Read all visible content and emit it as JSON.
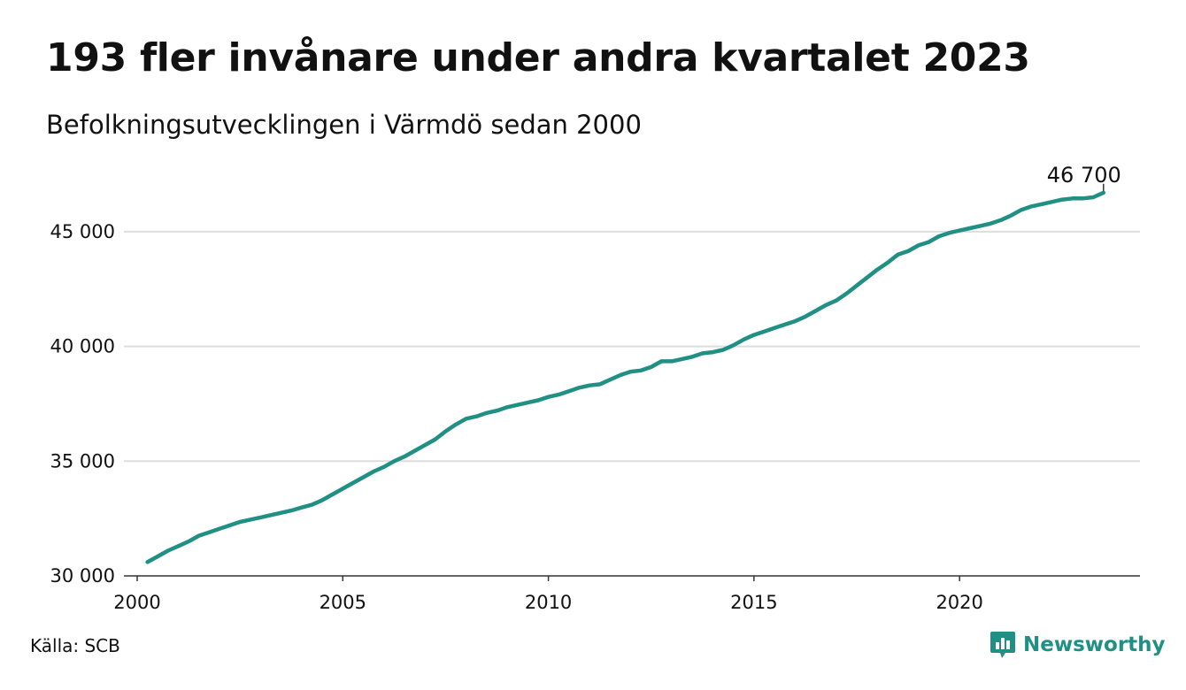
{
  "title": "193 fler invånare under andra kvartalet 2023",
  "subtitle": "Befolkningsutvecklingen i Värmdö sedan 2000",
  "source": "Källa: SCB",
  "brand": {
    "name": "Newsworthy",
    "icon": "newsworthy-logo-icon",
    "color": "#1f9083"
  },
  "chart_data": {
    "type": "line",
    "title": "193 fler invånare under andra kvartalet 2023",
    "subtitle": "Befolkningsutvecklingen i Värmdö sedan 2000",
    "xlabel": "",
    "ylabel": "",
    "xlim": [
      2000,
      2024
    ],
    "ylim": [
      30000,
      47000
    ],
    "grid": true,
    "line_color": "#1f9083",
    "x_ticks": [
      {
        "value": 2000,
        "label": "2000"
      },
      {
        "value": 2005,
        "label": "2005"
      },
      {
        "value": 2010,
        "label": "2010"
      },
      {
        "value": 2015,
        "label": "2015"
      },
      {
        "value": 2020,
        "label": "2020"
      }
    ],
    "y_ticks": [
      {
        "value": 30000,
        "label": "30 000"
      },
      {
        "value": 35000,
        "label": "35 000"
      },
      {
        "value": 40000,
        "label": "40 000"
      },
      {
        "value": 45000,
        "label": "45 000"
      }
    ],
    "end_label": "46 700",
    "series": [
      {
        "x": [
          2000.25,
          2000.5,
          2000.75,
          2001.0,
          2001.25,
          2001.5,
          2001.75,
          2002.0,
          2002.25,
          2002.5,
          2002.75,
          2003.0,
          2003.25,
          2003.5,
          2003.75,
          2004.0,
          2004.25,
          2004.5,
          2004.75,
          2005.0,
          2005.25,
          2005.5,
          2005.75,
          2006.0,
          2006.25,
          2006.5,
          2006.75,
          2007.0,
          2007.25,
          2007.5,
          2007.75,
          2008.0,
          2008.25,
          2008.5,
          2008.75,
          2009.0,
          2009.25,
          2009.5,
          2009.75,
          2010.0,
          2010.25,
          2010.5,
          2010.75,
          2011.0,
          2011.25,
          2011.5,
          2011.75,
          2012.0,
          2012.25,
          2012.5,
          2012.75,
          2013.0,
          2013.25,
          2013.5,
          2013.75,
          2014.0,
          2014.25,
          2014.5,
          2014.75,
          2015.0,
          2015.25,
          2015.5,
          2015.75,
          2016.0,
          2016.25,
          2016.5,
          2016.75,
          2017.0,
          2017.25,
          2017.5,
          2017.75,
          2018.0,
          2018.25,
          2018.5,
          2018.75,
          2019.0,
          2019.25,
          2019.5,
          2019.75,
          2020.0,
          2020.25,
          2020.5,
          2020.75,
          2021.0,
          2021.25,
          2021.5,
          2021.75,
          2022.0,
          2022.25,
          2022.5,
          2022.75,
          2023.0,
          2023.25,
          2023.5
        ],
        "y": [
          30600,
          30850,
          31100,
          31300,
          31500,
          31750,
          31900,
          32050,
          32200,
          32350,
          32450,
          32550,
          32650,
          32750,
          32850,
          32980,
          33100,
          33300,
          33550,
          33800,
          34050,
          34300,
          34550,
          34750,
          35000,
          35200,
          35450,
          35700,
          35950,
          36300,
          36600,
          36850,
          36950,
          37100,
          37200,
          37350,
          37450,
          37550,
          37650,
          37800,
          37900,
          38050,
          38200,
          38300,
          38350,
          38550,
          38750,
          38900,
          38950,
          39100,
          39350,
          39350,
          39450,
          39550,
          39700,
          39750,
          39850,
          40050,
          40300,
          40500,
          40650,
          40800,
          40950,
          41100,
          41300,
          41550,
          41800,
          42000,
          42300,
          42650,
          43000,
          43350,
          43650,
          44000,
          44150,
          44400,
          44550,
          44800,
          44950,
          45050,
          45150,
          45250,
          45350,
          45500,
          45700,
          45950,
          46100,
          46200,
          46300,
          46400,
          46450,
          46450,
          46500,
          46700
        ]
      }
    ]
  }
}
